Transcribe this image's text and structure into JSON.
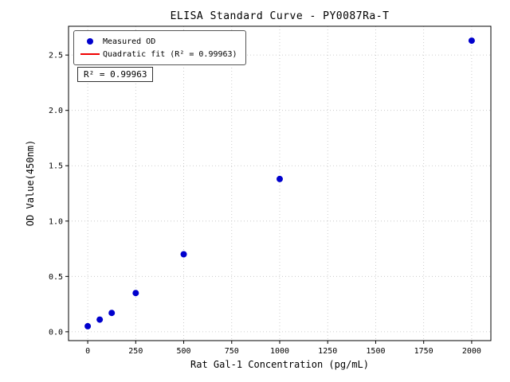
{
  "chart_data": {
    "type": "scatter",
    "title": "ELISA Standard Curve - PY0087Ra-T",
    "xlabel": "Rat Gal-1 Concentration (pg/mL)",
    "ylabel": "OD Value(450nm)",
    "xlim": [
      -100,
      2100
    ],
    "ylim": [
      -0.08,
      2.76
    ],
    "x_ticks": [
      0,
      250,
      500,
      750,
      1000,
      1250,
      1500,
      1750,
      2000
    ],
    "y_ticks": [
      0.0,
      0.5,
      1.0,
      1.5,
      2.0,
      2.5
    ],
    "grid": "dotted",
    "legend_position": "upper-left",
    "series": [
      {
        "name": "Measured OD",
        "type": "scatter",
        "color": "#0000cd",
        "x": [
          0,
          62.5,
          125,
          250,
          500,
          1000,
          2000
        ],
        "y": [
          0.05,
          0.11,
          0.17,
          0.35,
          0.7,
          1.38,
          2.63
        ]
      },
      {
        "name": "Quadratic fit (R² = 0.99963)",
        "type": "line",
        "color": "#f00000",
        "fit": "quadratic"
      }
    ],
    "annotation": "R² = 0.99963",
    "r_squared": "0.99963"
  }
}
